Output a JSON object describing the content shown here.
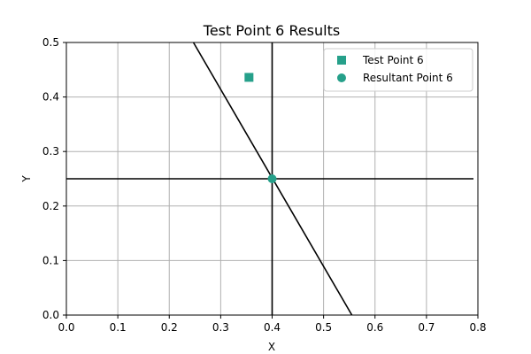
{
  "chart_data": {
    "type": "scatter",
    "title": "Test Point 6 Results",
    "xlabel": "X",
    "ylabel": "Y",
    "xlim": [
      0.0,
      0.8
    ],
    "ylim": [
      0.0,
      0.5
    ],
    "grid": true,
    "xticks": [
      "0.0",
      "0.1",
      "0.2",
      "0.3",
      "0.4",
      "0.5",
      "0.6",
      "0.7",
      "0.8"
    ],
    "yticks": [
      "0.0",
      "0.1",
      "0.2",
      "0.3",
      "0.4",
      "0.5"
    ],
    "legend_position": "top-right",
    "series": [
      {
        "name": "Test Point 6",
        "marker": "square",
        "color": "#26a08a",
        "points": [
          [
            0.355,
            0.436
          ]
        ]
      },
      {
        "name": "Resultant Point 6",
        "marker": "circle",
        "color": "#26a08a",
        "points": [
          [
            0.4,
            0.25
          ]
        ]
      }
    ],
    "lines": [
      {
        "type": "vertical",
        "x": 0.4,
        "color": "#000000"
      },
      {
        "type": "horizontal",
        "y": 0.25,
        "color": "#000000"
      },
      {
        "type": "segment",
        "from": [
          0.247,
          0.5
        ],
        "to": [
          0.555,
          0.0
        ],
        "color": "#000000"
      }
    ]
  }
}
